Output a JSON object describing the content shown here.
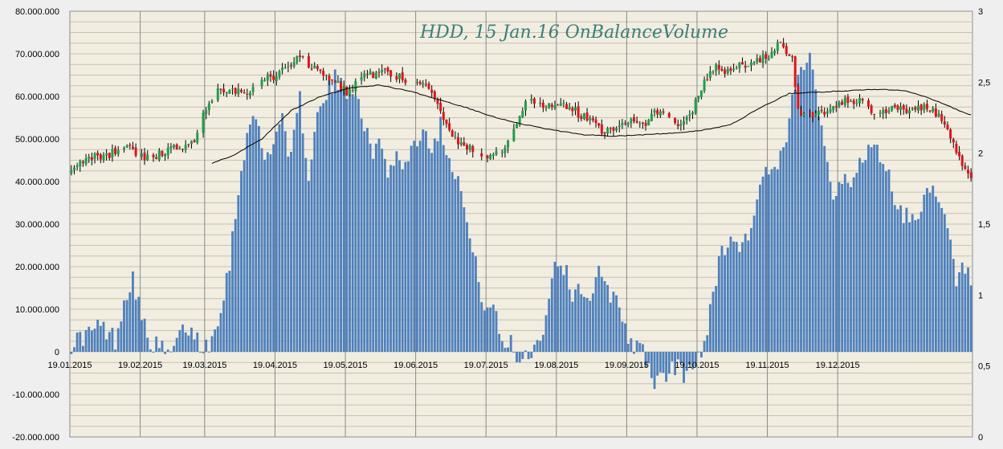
{
  "chart_data": {
    "type": "bar",
    "title": "HDD, 15 Jan.16 OnBalanceVolume",
    "colors": {
      "background": "#efefef",
      "plot": "#f1ede0",
      "grid": "#c9c2ad",
      "vgrid": "#8a8a8a",
      "bar": "#4f81bd",
      "up": "#1ea04a",
      "down": "#e0141c",
      "ma": "#000000"
    },
    "left_axis": {
      "ticks": [
        "80.000.000",
        "70.000.000",
        "60.000.000",
        "50.000.000",
        "40.000.000",
        "30.000.000",
        "20.000.000",
        "10.000.000",
        "0",
        "-10.000.000",
        "-20.000.000"
      ],
      "ylim": [
        -20000000,
        80000000
      ]
    },
    "right_axis": {
      "ticks": [
        "3",
        "2,5",
        "2",
        "1,5",
        "1",
        "0,5",
        "0"
      ],
      "ylim": [
        0,
        3
      ]
    },
    "x_ticks": [
      "19.01.2015",
      "19.02.2015",
      "19.03.2015",
      "19.04.2015",
      "19.05.2015",
      "19.06.2015",
      "19.07.2015",
      "19.08.2015",
      "19.09.2015",
      "19.10.2015",
      "19.11.2015",
      "19.12.2015"
    ],
    "obv_keyframes_M": [
      [
        0,
        2
      ],
      [
        5,
        4
      ],
      [
        10,
        6
      ],
      [
        15,
        3
      ],
      [
        18,
        12
      ],
      [
        21,
        18
      ],
      [
        24,
        8
      ],
      [
        26,
        3
      ],
      [
        30,
        1
      ],
      [
        33,
        -1
      ],
      [
        36,
        2
      ],
      [
        39,
        6
      ],
      [
        42,
        4
      ],
      [
        45,
        1
      ],
      [
        48,
        3
      ],
      [
        51,
        11
      ],
      [
        54,
        21
      ],
      [
        57,
        38
      ],
      [
        60,
        52
      ],
      [
        63,
        55
      ],
      [
        66,
        45
      ],
      [
        69,
        50
      ],
      [
        72,
        55
      ],
      [
        75,
        45
      ],
      [
        78,
        59
      ],
      [
        81,
        42
      ],
      [
        84,
        55
      ],
      [
        87,
        60
      ],
      [
        90,
        64
      ],
      [
        93,
        61
      ],
      [
        96,
        63
      ],
      [
        99,
        57
      ],
      [
        102,
        47
      ],
      [
        105,
        49
      ],
      [
        108,
        43
      ],
      [
        111,
        46
      ],
      [
        114,
        44
      ],
      [
        117,
        49
      ],
      [
        120,
        52
      ],
      [
        123,
        49
      ],
      [
        126,
        53
      ],
      [
        129,
        46
      ],
      [
        132,
        41
      ],
      [
        135,
        30
      ],
      [
        138,
        20
      ],
      [
        141,
        11
      ],
      [
        144,
        10
      ],
      [
        147,
        2
      ],
      [
        150,
        2
      ],
      [
        153,
        -2
      ],
      [
        156,
        0
      ],
      [
        159,
        2
      ],
      [
        162,
        8
      ],
      [
        165,
        22
      ],
      [
        168,
        20
      ],
      [
        171,
        14
      ],
      [
        174,
        15
      ],
      [
        177,
        13
      ],
      [
        180,
        18
      ],
      [
        183,
        14
      ],
      [
        186,
        13
      ],
      [
        189,
        6
      ],
      [
        192,
        1
      ],
      [
        195,
        0
      ],
      [
        198,
        -6
      ],
      [
        201,
        -7
      ],
      [
        204,
        -5
      ],
      [
        207,
        -3
      ],
      [
        210,
        -6
      ],
      [
        213,
        -3
      ],
      [
        216,
        2
      ],
      [
        219,
        15
      ],
      [
        222,
        23
      ],
      [
        225,
        28
      ],
      [
        228,
        24
      ],
      [
        231,
        28
      ],
      [
        234,
        35
      ],
      [
        237,
        43
      ],
      [
        240,
        41
      ],
      [
        243,
        47
      ],
      [
        246,
        58
      ],
      [
        249,
        67
      ],
      [
        252,
        72
      ],
      [
        254,
        62
      ],
      [
        257,
        48
      ],
      [
        260,
        38
      ],
      [
        263,
        40
      ],
      [
        266,
        38
      ],
      [
        269,
        45
      ],
      [
        272,
        48
      ],
      [
        275,
        47
      ],
      [
        278,
        44
      ],
      [
        281,
        36
      ],
      [
        284,
        32
      ],
      [
        287,
        31
      ],
      [
        290,
        35
      ],
      [
        293,
        38
      ],
      [
        296,
        34
      ],
      [
        299,
        29
      ],
      [
        302,
        16
      ],
      [
        305,
        20
      ],
      [
        307,
        16
      ]
    ],
    "price_keyframes": [
      [
        0,
        1.85
      ],
      [
        6,
        1.98
      ],
      [
        12,
        1.98
      ],
      [
        18,
        2.06
      ],
      [
        22,
        2.0
      ],
      [
        26,
        1.96
      ],
      [
        30,
        1.99
      ],
      [
        34,
        2.02
      ],
      [
        38,
        2.05
      ],
      [
        42,
        2.06
      ],
      [
        44,
        2.22
      ],
      [
        47,
        2.34
      ],
      [
        50,
        2.44
      ],
      [
        54,
        2.45
      ],
      [
        58,
        2.43
      ],
      [
        62,
        2.45
      ],
      [
        66,
        2.52
      ],
      [
        70,
        2.55
      ],
      [
        74,
        2.6
      ],
      [
        78,
        2.68
      ],
      [
        80,
        2.62
      ],
      [
        83,
        2.6
      ],
      [
        86,
        2.55
      ],
      [
        90,
        2.52
      ],
      [
        94,
        2.42
      ],
      [
        98,
        2.52
      ],
      [
        102,
        2.55
      ],
      [
        106,
        2.57
      ],
      [
        110,
        2.55
      ],
      [
        114,
        2.52
      ],
      [
        118,
        2.49
      ],
      [
        122,
        2.48
      ],
      [
        126,
        2.3
      ],
      [
        130,
        2.12
      ],
      [
        134,
        2.05
      ],
      [
        138,
        2.02
      ],
      [
        142,
        1.96
      ],
      [
        146,
        2.0
      ],
      [
        150,
        2.1
      ],
      [
        153,
        2.28
      ],
      [
        156,
        2.38
      ],
      [
        159,
        2.35
      ],
      [
        162,
        2.34
      ],
      [
        166,
        2.35
      ],
      [
        170,
        2.33
      ],
      [
        174,
        2.26
      ],
      [
        178,
        2.25
      ],
      [
        181,
        2.14
      ],
      [
        184,
        2.18
      ],
      [
        187,
        2.2
      ],
      [
        190,
        2.22
      ],
      [
        193,
        2.24
      ],
      [
        196,
        2.22
      ],
      [
        199,
        2.28
      ],
      [
        202,
        2.26
      ],
      [
        205,
        2.21
      ],
      [
        208,
        2.18
      ],
      [
        211,
        2.26
      ],
      [
        214,
        2.4
      ],
      [
        217,
        2.55
      ],
      [
        220,
        2.61
      ],
      [
        223,
        2.55
      ],
      [
        226,
        2.6
      ],
      [
        229,
        2.62
      ],
      [
        232,
        2.64
      ],
      [
        235,
        2.66
      ],
      [
        238,
        2.68
      ],
      [
        242,
        2.78
      ],
      [
        244,
        2.72
      ],
      [
        246,
        2.65
      ],
      [
        248,
        2.3
      ],
      [
        252,
        2.26
      ],
      [
        256,
        2.29
      ],
      [
        260,
        2.33
      ],
      [
        264,
        2.36
      ],
      [
        268,
        2.38
      ],
      [
        272,
        2.31
      ],
      [
        276,
        2.28
      ],
      [
        280,
        2.32
      ],
      [
        284,
        2.3
      ],
      [
        288,
        2.32
      ],
      [
        292,
        2.34
      ],
      [
        296,
        2.27
      ],
      [
        300,
        2.11
      ],
      [
        303,
        1.96
      ],
      [
        306,
        1.85
      ],
      [
        307,
        1.83
      ]
    ],
    "ma_keyframes": [
      [
        48,
        1.93
      ],
      [
        55,
        1.98
      ],
      [
        65,
        2.1
      ],
      [
        75,
        2.3
      ],
      [
        85,
        2.4
      ],
      [
        95,
        2.46
      ],
      [
        105,
        2.48
      ],
      [
        115,
        2.44
      ],
      [
        125,
        2.38
      ],
      [
        135,
        2.32
      ],
      [
        145,
        2.25
      ],
      [
        155,
        2.2
      ],
      [
        165,
        2.16
      ],
      [
        175,
        2.13
      ],
      [
        185,
        2.12
      ],
      [
        195,
        2.13
      ],
      [
        205,
        2.14
      ],
      [
        215,
        2.16
      ],
      [
        225,
        2.2
      ],
      [
        235,
        2.32
      ],
      [
        245,
        2.42
      ],
      [
        255,
        2.43
      ],
      [
        265,
        2.44
      ],
      [
        275,
        2.45
      ],
      [
        285,
        2.44
      ],
      [
        295,
        2.37
      ],
      [
        303,
        2.3
      ],
      [
        307,
        2.27
      ]
    ]
  }
}
